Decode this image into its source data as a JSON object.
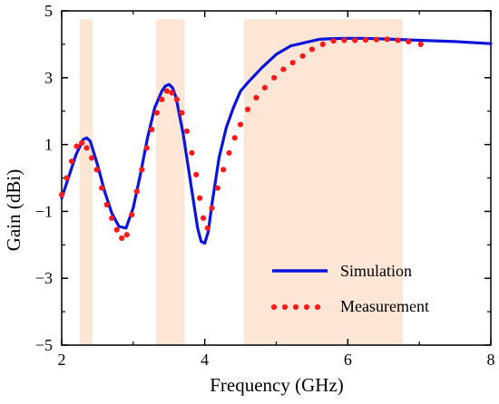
{
  "chart_data": {
    "type": "line",
    "title": "",
    "xlabel": "Frequency (GHz)",
    "ylabel": "Gain (dBi)",
    "xlim": [
      2,
      8
    ],
    "ylim": [
      -5,
      5
    ],
    "xticks": [
      2,
      4,
      6,
      8
    ],
    "yticks": [
      -5,
      -3,
      -1,
      1,
      3,
      5
    ],
    "xtick_labels": [
      "2",
      "4",
      "6",
      "8"
    ],
    "ytick_labels": [
      "−5",
      "−3",
      "−1",
      "1",
      "3",
      "5"
    ],
    "grid": false,
    "legend_position": "bottom-right",
    "shaded_bands": [
      {
        "x0": 2.25,
        "x1": 2.43
      },
      {
        "x0": 3.32,
        "x1": 3.72
      },
      {
        "x0": 4.55,
        "x1": 6.77
      }
    ],
    "series": [
      {
        "name": "Simulation",
        "style": "solid",
        "color": "#0a14dc",
        "x": [
          2.0,
          2.1,
          2.2,
          2.3,
          2.35,
          2.4,
          2.5,
          2.6,
          2.7,
          2.8,
          2.9,
          3.0,
          3.1,
          3.2,
          3.3,
          3.4,
          3.45,
          3.5,
          3.55,
          3.6,
          3.7,
          3.8,
          3.9,
          3.95,
          4.0,
          4.05,
          4.1,
          4.2,
          4.3,
          4.4,
          4.5,
          4.6,
          4.8,
          5.0,
          5.2,
          5.4,
          5.6,
          5.8,
          6.0,
          6.2,
          6.5,
          7.0,
          7.5,
          8.0
        ],
        "y": [
          -0.6,
          0.05,
          0.7,
          1.15,
          1.2,
          1.1,
          0.4,
          -0.4,
          -1.05,
          -1.45,
          -1.5,
          -0.9,
          0.1,
          1.2,
          2.1,
          2.6,
          2.75,
          2.8,
          2.7,
          2.4,
          1.3,
          -0.1,
          -1.5,
          -1.9,
          -1.95,
          -1.6,
          -0.8,
          0.6,
          1.5,
          2.1,
          2.6,
          2.85,
          3.3,
          3.7,
          3.95,
          4.05,
          4.15,
          4.17,
          4.18,
          4.18,
          4.16,
          4.12,
          4.08,
          4.02
        ]
      },
      {
        "name": "Measurement",
        "style": "dotted",
        "color": "#ff1a1a",
        "x": [
          2.0,
          2.07,
          2.14,
          2.21,
          2.28,
          2.35,
          2.42,
          2.49,
          2.56,
          2.63,
          2.7,
          2.77,
          2.84,
          2.91,
          2.98,
          3.05,
          3.12,
          3.19,
          3.26,
          3.33,
          3.4,
          3.47,
          3.54,
          3.61,
          3.68,
          3.75,
          3.82,
          3.88,
          3.93,
          3.98,
          4.04,
          4.1,
          4.18,
          4.26,
          4.34,
          4.42,
          4.5,
          4.6,
          4.72,
          4.84,
          4.97,
          5.1,
          5.23,
          5.37,
          5.5,
          5.65,
          5.8,
          5.95,
          6.1,
          6.25,
          6.4,
          6.55,
          6.7,
          6.85,
          7.02
        ],
        "y": [
          -0.5,
          0.0,
          0.5,
          0.95,
          1.05,
          0.9,
          0.6,
          0.25,
          -0.3,
          -0.8,
          -1.2,
          -1.55,
          -1.8,
          -1.7,
          -1.1,
          -0.4,
          0.25,
          0.9,
          1.45,
          1.95,
          2.35,
          2.6,
          2.55,
          2.35,
          1.95,
          1.4,
          0.75,
          0.1,
          -0.6,
          -1.2,
          -1.5,
          -0.9,
          -0.3,
          0.25,
          0.75,
          1.2,
          1.6,
          2.05,
          2.4,
          2.7,
          3.0,
          3.25,
          3.45,
          3.65,
          3.85,
          4.0,
          4.1,
          4.12,
          4.12,
          4.13,
          4.14,
          4.15,
          4.12,
          4.08,
          4.0
        ]
      }
    ]
  }
}
